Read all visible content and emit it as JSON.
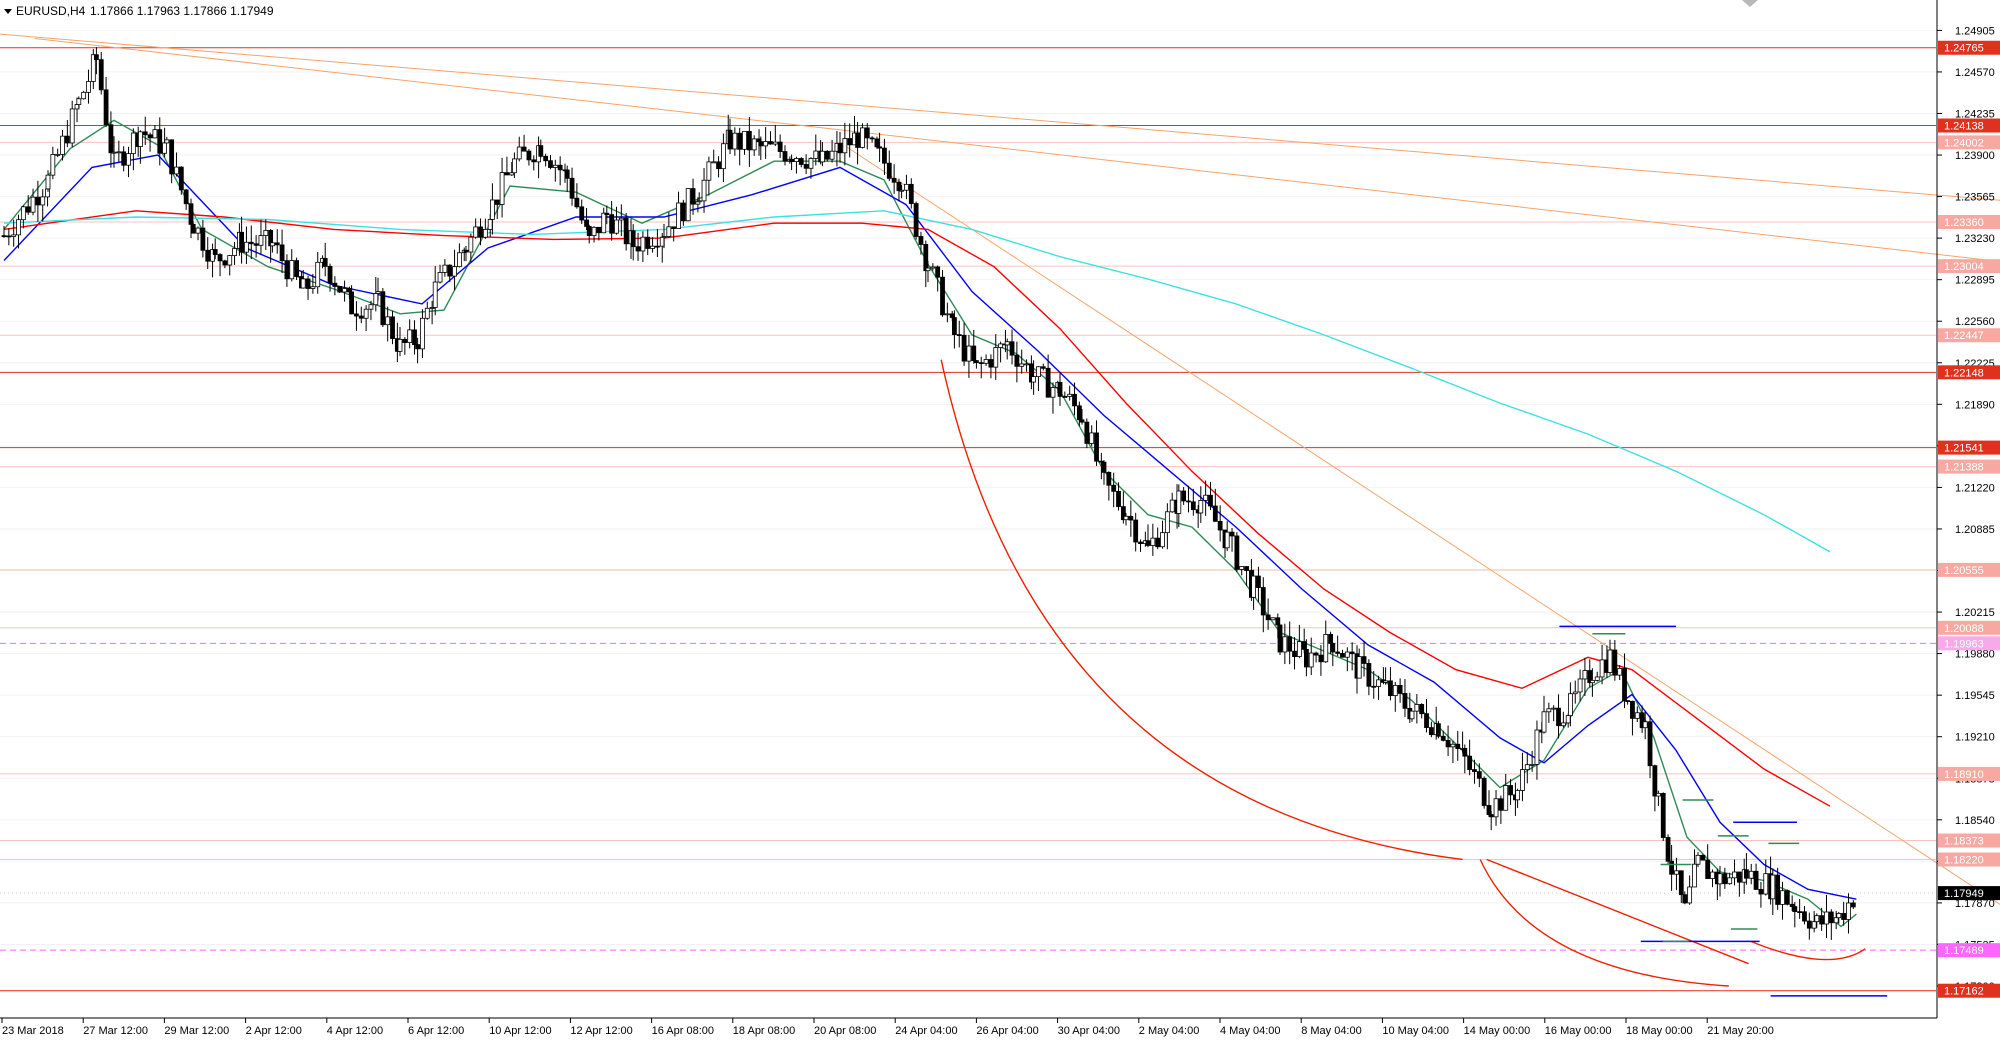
{
  "header": {
    "symbol_label": "EURUSD,H4",
    "ohlc": "1.17866 1.17963 1.17866 1.17949"
  },
  "colors": {
    "background": "#ffffff",
    "grid": "#f2f2f2",
    "bull_candle": "#ffffff",
    "bear_candle": "#000000",
    "ma_fast": "#2e8b57",
    "ma_mid": "#0000ff",
    "ma_slow": "#ff0000",
    "ma_long": "#40e0e0",
    "trendline": "#f4a46a",
    "level_strong": "#e0301e",
    "level_weak": "#f7a9a1",
    "level_dashed": "#ff66ff",
    "arc": "#ee2200",
    "price_tag": "#000000",
    "magenta_tag": "#ff66ff"
  },
  "chart_data": {
    "type": "candlestick",
    "symbol": "EURUSD",
    "timeframe": "H4",
    "ylim": [
      1.1695,
      1.2515
    ],
    "y_ticks": [
      "1.24905",
      "1.24570",
      "1.24235",
      "1.23900",
      "1.23565",
      "1.23230",
      "1.22895",
      "1.22560",
      "1.22225",
      "1.21890",
      "1.21555",
      "1.21220",
      "1.20885",
      "1.20550",
      "1.20215",
      "1.19880",
      "1.19545",
      "1.19210",
      "1.18875",
      "1.18540",
      "1.18205",
      "1.17870",
      "1.17535",
      "1.17200"
    ],
    "x_labels": [
      "23 Mar 2018",
      "27 Mar 12:00",
      "29 Mar 12:00",
      "2 Apr 12:00",
      "4 Apr 12:00",
      "6 Apr 12:00",
      "10 Apr 12:00",
      "12 Apr 12:00",
      "16 Apr 08:00",
      "18 Apr 08:00",
      "20 Apr 08:00",
      "24 Apr 04:00",
      "26 Apr 04:00",
      "30 Apr 04:00",
      "2 May 04:00",
      "4 May 04:00",
      "8 May 04:00",
      "10 May 04:00",
      "14 May 00:00",
      "16 May 00:00",
      "18 May 00:00",
      "21 May 20:00"
    ],
    "price_levels": [
      {
        "label": "1.24765",
        "value": 1.24765,
        "style": "strong"
      },
      {
        "label": "1.24138",
        "value": 1.24138,
        "style": "strong"
      },
      {
        "label": "1.24002",
        "value": 1.24002,
        "style": "weak"
      },
      {
        "label": "1.23360",
        "value": 1.2336,
        "style": "weak"
      },
      {
        "label": "1.23004",
        "value": 1.23004,
        "style": "weak"
      },
      {
        "label": "1.22447",
        "value": 1.22447,
        "style": "weak"
      },
      {
        "label": "1.22148",
        "value": 1.22148,
        "style": "strong"
      },
      {
        "label": "1.21541",
        "value": 1.21541,
        "style": "strong"
      },
      {
        "label": "1.21388",
        "value": 1.21388,
        "style": "weak"
      },
      {
        "label": "1.20555",
        "value": 1.20555,
        "style": "weak"
      },
      {
        "label": "1.20088",
        "value": 1.20088,
        "style": "weak"
      },
      {
        "label": "1.19963",
        "value": 1.19963,
        "style": "dashed-weak"
      },
      {
        "label": "1.18910",
        "value": 1.1891,
        "style": "weak"
      },
      {
        "label": "1.18373",
        "value": 1.18373,
        "style": "weak"
      },
      {
        "label": "1.18220",
        "value": 1.1822,
        "style": "weak"
      },
      {
        "label": "1.17489",
        "value": 1.17489,
        "style": "magenta"
      },
      {
        "label": "1.17162",
        "value": 1.17162,
        "style": "strong"
      }
    ],
    "current_price": {
      "label": "1.17949",
      "value": 1.17949
    },
    "path_points": [
      [
        0,
        1.2325
      ],
      [
        20,
        1.237
      ],
      [
        34,
        1.2432
      ],
      [
        42,
        1.2467
      ],
      [
        50,
        1.2382
      ],
      [
        62,
        1.241
      ],
      [
        74,
        1.2395
      ],
      [
        86,
        1.2335
      ],
      [
        96,
        1.2305
      ],
      [
        108,
        1.232
      ],
      [
        122,
        1.2318
      ],
      [
        136,
        1.228
      ],
      [
        146,
        1.2302
      ],
      [
        158,
        1.2268
      ],
      [
        170,
        1.227
      ],
      [
        180,
        1.2235
      ],
      [
        188,
        1.2242
      ],
      [
        196,
        1.2282
      ],
      [
        210,
        1.2316
      ],
      [
        222,
        1.235
      ],
      [
        232,
        1.2384
      ],
      [
        244,
        1.2398
      ],
      [
        256,
        1.2372
      ],
      [
        266,
        1.232
      ],
      [
        274,
        1.2342
      ],
      [
        286,
        1.2318
      ],
      [
        300,
        1.233
      ],
      [
        316,
        1.2362
      ],
      [
        330,
        1.2402
      ],
      [
        344,
        1.2396
      ],
      [
        358,
        1.2392
      ],
      [
        372,
        1.2384
      ],
      [
        380,
        1.2395
      ],
      [
        388,
        1.2405
      ],
      [
        398,
        1.2388
      ],
      [
        408,
        1.237
      ],
      [
        420,
        1.2302
      ],
      [
        432,
        1.2245
      ],
      [
        442,
        1.2217
      ],
      [
        456,
        1.2238
      ],
      [
        468,
        1.2212
      ],
      [
        480,
        1.22
      ],
      [
        490,
        1.218
      ],
      [
        500,
        1.2125
      ],
      [
        510,
        1.2102
      ],
      [
        520,
        1.2072
      ],
      [
        534,
        1.2112
      ],
      [
        544,
        1.2112
      ],
      [
        556,
        1.208
      ],
      [
        568,
        1.204
      ],
      [
        580,
        1.1998
      ],
      [
        592,
        1.1985
      ],
      [
        604,
        1.1998
      ],
      [
        616,
        1.1975
      ],
      [
        628,
        1.196
      ],
      [
        640,
        1.1942
      ],
      [
        652,
        1.193
      ],
      [
        664,
        1.1902
      ],
      [
        676,
        1.1865
      ],
      [
        688,
        1.1878
      ],
      [
        700,
        1.1935
      ],
      [
        712,
        1.1945
      ],
      [
        722,
        1.1975
      ],
      [
        730,
        1.1985
      ],
      [
        738,
        1.1952
      ],
      [
        746,
        1.193
      ],
      [
        752,
        1.1865
      ],
      [
        758,
        1.1815
      ],
      [
        764,
        1.178
      ],
      [
        770,
        1.1818
      ],
      [
        780,
        1.1806
      ],
      [
        792,
        1.181
      ],
      [
        804,
        1.18
      ],
      [
        814,
        1.1785
      ],
      [
        824,
        1.177
      ],
      [
        834,
        1.1776
      ],
      [
        842,
        1.1795
      ]
    ],
    "moving_averages": [
      {
        "key": "ma_fast",
        "points": [
          [
            0,
            1.233
          ],
          [
            30,
            1.2395
          ],
          [
            50,
            1.2418
          ],
          [
            70,
            1.2398
          ],
          [
            90,
            1.233
          ],
          [
            120,
            1.23
          ],
          [
            150,
            1.2282
          ],
          [
            180,
            1.2262
          ],
          [
            200,
            1.2265
          ],
          [
            230,
            1.2365
          ],
          [
            260,
            1.236
          ],
          [
            290,
            1.2335
          ],
          [
            320,
            1.2358
          ],
          [
            350,
            1.2385
          ],
          [
            380,
            1.2385
          ],
          [
            400,
            1.237
          ],
          [
            420,
            1.2302
          ],
          [
            440,
            1.2245
          ],
          [
            460,
            1.223
          ],
          [
            480,
            1.22
          ],
          [
            500,
            1.2135
          ],
          [
            520,
            1.21
          ],
          [
            540,
            1.209
          ],
          [
            560,
            1.2055
          ],
          [
            580,
            1.2005
          ],
          [
            600,
            1.199
          ],
          [
            620,
            1.1975
          ],
          [
            640,
            1.195
          ],
          [
            660,
            1.1915
          ],
          [
            680,
            1.188
          ],
          [
            700,
            1.1902
          ],
          [
            720,
            1.196
          ],
          [
            735,
            1.1975
          ],
          [
            750,
            1.192
          ],
          [
            765,
            1.184
          ],
          [
            780,
            1.1812
          ],
          [
            800,
            1.1805
          ],
          [
            820,
            1.179
          ],
          [
            835,
            1.1768
          ],
          [
            842,
            1.1778
          ]
        ]
      },
      {
        "key": "ma_mid",
        "points": [
          [
            0,
            1.2305
          ],
          [
            40,
            1.238
          ],
          [
            70,
            1.239
          ],
          [
            110,
            1.2315
          ],
          [
            150,
            1.2285
          ],
          [
            190,
            1.227
          ],
          [
            220,
            1.2315
          ],
          [
            260,
            1.234
          ],
          [
            300,
            1.234
          ],
          [
            340,
            1.2358
          ],
          [
            380,
            1.238
          ],
          [
            410,
            1.235
          ],
          [
            440,
            1.228
          ],
          [
            470,
            1.2232
          ],
          [
            500,
            1.218
          ],
          [
            530,
            1.2135
          ],
          [
            560,
            1.209
          ],
          [
            590,
            1.204
          ],
          [
            620,
            1.1995
          ],
          [
            650,
            1.1965
          ],
          [
            680,
            1.192
          ],
          [
            700,
            1.19
          ],
          [
            720,
            1.193
          ],
          [
            740,
            1.1955
          ],
          [
            760,
            1.191
          ],
          [
            780,
            1.1852
          ],
          [
            800,
            1.1818
          ],
          [
            820,
            1.1798
          ],
          [
            842,
            1.179
          ]
        ]
      },
      {
        "key": "ma_slow",
        "points": [
          [
            0,
            1.233
          ],
          [
            60,
            1.2345
          ],
          [
            100,
            1.234
          ],
          [
            150,
            1.233
          ],
          [
            200,
            1.2325
          ],
          [
            250,
            1.2322
          ],
          [
            300,
            1.2323
          ],
          [
            350,
            1.2335
          ],
          [
            390,
            1.2335
          ],
          [
            420,
            1.233
          ],
          [
            450,
            1.23
          ],
          [
            480,
            1.225
          ],
          [
            510,
            1.219
          ],
          [
            540,
            1.2135
          ],
          [
            570,
            1.2085
          ],
          [
            600,
            1.204
          ],
          [
            630,
            1.2005
          ],
          [
            660,
            1.1975
          ],
          [
            690,
            1.196
          ],
          [
            720,
            1.1985
          ],
          [
            740,
            1.1975
          ],
          [
            770,
            1.1935
          ],
          [
            800,
            1.1895
          ],
          [
            830,
            1.1865
          ]
        ]
      },
      {
        "key": "ma_long",
        "points": [
          [
            0,
            1.2335
          ],
          [
            60,
            1.234
          ],
          [
            120,
            1.2338
          ],
          [
            180,
            1.233
          ],
          [
            240,
            1.2326
          ],
          [
            300,
            1.233
          ],
          [
            350,
            1.234
          ],
          [
            400,
            1.2345
          ],
          [
            440,
            1.233
          ],
          [
            480,
            1.2308
          ],
          [
            520,
            1.229
          ],
          [
            560,
            1.227
          ],
          [
            600,
            1.2245
          ],
          [
            640,
            1.2218
          ],
          [
            680,
            1.219
          ],
          [
            720,
            1.2165
          ],
          [
            760,
            1.2135
          ],
          [
            800,
            1.21
          ],
          [
            830,
            1.207
          ]
        ]
      }
    ],
    "trendlines": [
      {
        "from": [
          -2,
          1.24875
        ],
        "to": [
          938,
          1.2349
        ]
      },
      {
        "from": [
          14,
          1.2484
        ],
        "to": [
          938,
          1.2298
        ]
      },
      {
        "from": [
          380,
          1.24
        ],
        "to": [
          938,
          1.175
        ]
      }
    ],
    "arcs": [
      {
        "from": [
          426,
          1.2225
        ],
        "ctrl": [
          470,
          1.1865
        ],
        "to": [
          663,
          1.1822
        ]
      },
      {
        "from": [
          671,
          1.1822
        ],
        "ctrl": [
          695,
          1.173
        ],
        "to": [
          784,
          1.172
        ]
      },
      {
        "from": [
          674,
          1.1822
        ],
        "ctrl": [
          740,
          1.1775
        ],
        "to": [
          793,
          1.1738
        ]
      },
      {
        "from": [
          794,
          1.1756
        ],
        "ctrl": [
          830,
          1.173
        ],
        "to": [
          846,
          1.175
        ]
      }
    ],
    "markers": [
      {
        "color": "blue",
        "x1": 707,
        "x2": 760,
        "y": 1.201
      },
      {
        "color": "blue",
        "x1": 786,
        "x2": 815,
        "y": 1.1852
      },
      {
        "color": "blue",
        "x1": 744,
        "x2": 798,
        "y": 1.1756
      },
      {
        "color": "blue",
        "x1": 803,
        "x2": 856,
        "y": 1.1712
      },
      {
        "color": "green",
        "x1": 722,
        "x2": 737,
        "y": 1.2004
      },
      {
        "color": "green",
        "x1": 763,
        "x2": 777,
        "y": 1.187
      },
      {
        "color": "green",
        "x1": 753,
        "x2": 767,
        "y": 1.1818
      },
      {
        "color": "green",
        "x1": 779,
        "x2": 793,
        "y": 1.1841
      },
      {
        "color": "green",
        "x1": 802,
        "x2": 816,
        "y": 1.1835
      },
      {
        "color": "green",
        "x1": 785,
        "x2": 797,
        "y": 1.1766
      },
      {
        "color": "green",
        "x1": 754,
        "x2": 766,
        "y": 1.1756
      }
    ]
  }
}
